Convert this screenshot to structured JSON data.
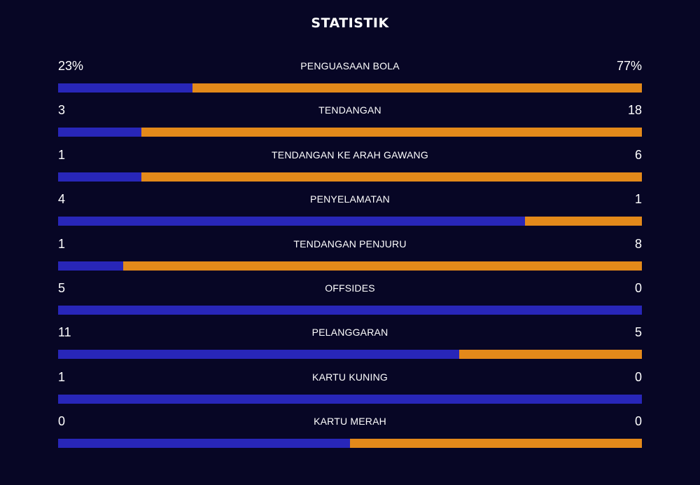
{
  "title": "STATISTIK",
  "colors": {
    "background": "#070625",
    "home": "#2826b8",
    "away": "#e3891a"
  },
  "stats": [
    {
      "label": "PENGUASAAN BOLA",
      "home": "23%",
      "away": "77%",
      "home_share": 0.23
    },
    {
      "label": "TENDANGAN",
      "home": "3",
      "away": "18",
      "home_share": 0.1429
    },
    {
      "label": "TENDANGAN KE ARAH GAWANG",
      "home": "1",
      "away": "6",
      "home_share": 0.1429
    },
    {
      "label": "PENYELAMATAN",
      "home": "4",
      "away": "1",
      "home_share": 0.8
    },
    {
      "label": "TENDANGAN PENJURU",
      "home": "1",
      "away": "8",
      "home_share": 0.1111
    },
    {
      "label": "OFFSIDES",
      "home": "5",
      "away": "0",
      "home_share": 1.0
    },
    {
      "label": "PELANGGARAN",
      "home": "11",
      "away": "5",
      "home_share": 0.6875
    },
    {
      "label": "KARTU KUNING",
      "home": "1",
      "away": "0",
      "home_share": 1.0
    },
    {
      "label": "KARTU MERAH",
      "home": "0",
      "away": "0",
      "home_share": 0.5
    }
  ]
}
